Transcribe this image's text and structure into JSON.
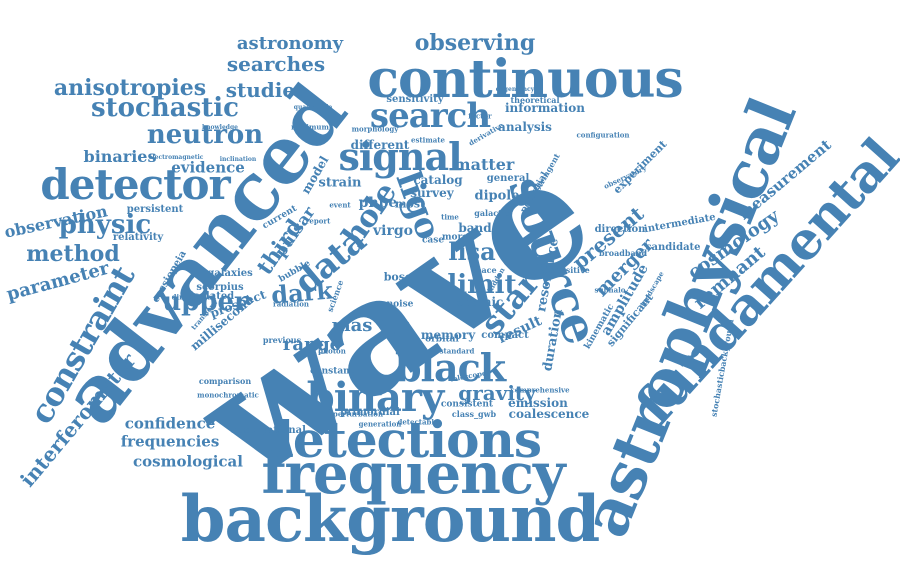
{
  "palette": {
    "word_color": "#4682b4",
    "background": "#ffffff"
  },
  "words": [
    "wave",
    "advanced",
    "astrophysical",
    "fundamental",
    "background",
    "frequency",
    "detections",
    "continuous",
    "source",
    "binary",
    "black",
    "signal",
    "search",
    "detector",
    "constraint",
    "data",
    "hole",
    "ligo",
    "upper",
    "neutron",
    "stochastic",
    "anisotropies",
    "observing",
    "searches",
    "studies",
    "astronomy",
    "physic",
    "method",
    "parameter",
    "observation",
    "binaries",
    "evidence",
    "interferometer",
    "confidence",
    "frequencies",
    "cosmological",
    "star",
    "lisa",
    "limit",
    "dark",
    "third",
    "pulsar",
    "gravity",
    "range",
    "mas",
    "matter",
    "merger",
    "cosmology",
    "remnant",
    "measurement",
    "present",
    "amplitude",
    "resonance",
    "duration",
    "result",
    "emission",
    "coalescence",
    "strain",
    "phbe",
    "virgo",
    "band",
    "catalog",
    "most",
    "survey",
    "dipole",
    "general",
    "memory",
    "cosmic",
    "intermediate",
    "experiment",
    "direction",
    "candidate",
    "significant",
    "kinematic",
    "analysis",
    "information",
    "theoretical",
    "sensitivity",
    "different",
    "model",
    "prospect",
    "millisecond",
    "relativity",
    "scorpius",
    "galaxies",
    "isolated",
    "cassiopeia",
    "persistent",
    "comparison",
    "observational",
    "primordial",
    "consistent",
    "compact",
    "short",
    "boson",
    "noise",
    "constant",
    "future",
    "orbital",
    "stochasticbackground",
    "comprehensive",
    "detectable",
    "class_gwb",
    "generation",
    "monochromatic",
    "directional",
    "radiation",
    "previous",
    "transient",
    "bubble",
    "current",
    "electromagnetic",
    "inclination",
    "knowledge",
    "minimum",
    "morphology",
    "quadrupole",
    "degeneracy",
    "factor",
    "estimate",
    "derivative",
    "stringent",
    "configuration",
    "observatory",
    "landscape",
    "broadband",
    "sensitive",
    "subhalo",
    "standard",
    "space",
    "more",
    "case",
    "time",
    "hidden",
    "telescope",
    "photon",
    "science",
    "report",
    "event",
    "galactic",
    "potential",
    "perturbation",
    "ellipticity",
    "approach",
    "mode",
    "spectrum",
    "energy"
  ]
}
